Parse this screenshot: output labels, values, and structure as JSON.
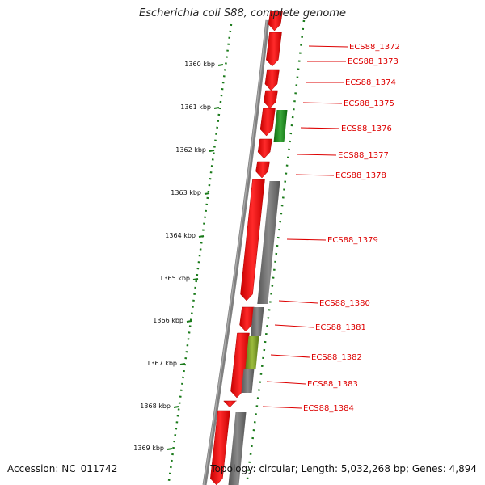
{
  "title": "Escherichia coli S88, complete genome",
  "accession": "Accession: NC_011742",
  "summary": "Topology: circular; Length: 5,032,268 bp; Genes: 4,894",
  "ticks": [
    "1360 kbp",
    "1361 kbp",
    "1362 kbp",
    "1363 kbp",
    "1364 kbp",
    "1365 kbp",
    "1366 kbp",
    "1367 kbp",
    "1368 kbp",
    "1369 kbp"
  ],
  "genes": [
    "ECS88_1372",
    "ECS88_1373",
    "ECS88_1374",
    "ECS88_1375",
    "ECS88_1376",
    "ECS88_1377",
    "ECS88_1378",
    "ECS88_1379",
    "ECS88_1380",
    "ECS88_1381",
    "ECS88_1382",
    "ECS88_1383",
    "ECS88_1384"
  ],
  "colors": {
    "cds": "#ff0000",
    "gene_bar": "#6e6e6e",
    "green": "#1e8c1e",
    "olive": "#7a9a2a",
    "backbone": "#808080",
    "scale": "#1a7a1a",
    "label": "#dd0000"
  }
}
